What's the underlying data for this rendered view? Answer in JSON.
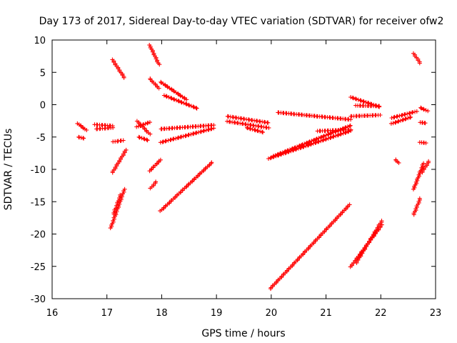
{
  "chart_data": {
    "type": "scatter",
    "title": "Day 173 of 2017, Sidereal Day-to-day VTEC variation (SDTVAR) for receiver ofw2",
    "xlabel": "GPS time / hours",
    "ylabel": "SDTVAR / TECUs",
    "xlim": [
      16,
      23
    ],
    "ylim": [
      -30,
      10
    ],
    "xticks": [
      "16",
      "17",
      "18",
      "19",
      "20",
      "21",
      "22",
      "23"
    ],
    "yticks": [
      "10",
      "5",
      "0",
      "-5",
      "-10",
      "-15",
      "-20",
      "-25",
      "-30"
    ],
    "grid": false,
    "legend": "none",
    "marker": "plus",
    "color": "#ff0000",
    "segments": [
      {
        "x": [
          16.47,
          16.62
        ],
        "y": [
          -3.0,
          -4.0
        ]
      },
      {
        "x": [
          16.48,
          16.58
        ],
        "y": [
          -5.0,
          -5.2
        ]
      },
      {
        "x": [
          16.78,
          17.1
        ],
        "y": [
          -3.0,
          -3.2
        ]
      },
      {
        "x": [
          16.8,
          17.1
        ],
        "y": [
          -3.8,
          -3.6
        ]
      },
      {
        "x": [
          17.1,
          17.32
        ],
        "y": [
          7.0,
          4.2
        ]
      },
      {
        "x": [
          17.12,
          17.3
        ],
        "y": [
          -5.8,
          -5.6
        ]
      },
      {
        "x": [
          17.1,
          17.35
        ],
        "y": [
          -10.5,
          -7.0
        ]
      },
      {
        "x": [
          17.07,
          17.32
        ],
        "y": [
          -19.0,
          -13.0
        ]
      },
      {
        "x": [
          17.12,
          17.25
        ],
        "y": [
          -17.0,
          -14.0
        ]
      },
      {
        "x": [
          17.55,
          17.78
        ],
        "y": [
          -2.5,
          -4.5
        ]
      },
      {
        "x": [
          17.55,
          17.78
        ],
        "y": [
          -3.5,
          -2.8
        ]
      },
      {
        "x": [
          17.58,
          17.75
        ],
        "y": [
          -5.0,
          -5.5
        ]
      },
      {
        "x": [
          17.78,
          17.95
        ],
        "y": [
          9.3,
          6.3
        ]
      },
      {
        "x": [
          17.78,
          17.95
        ],
        "y": [
          4.0,
          2.5
        ]
      },
      {
        "x": [
          17.78,
          17.98
        ],
        "y": [
          -10.2,
          -8.5
        ]
      },
      {
        "x": [
          17.8,
          17.9
        ],
        "y": [
          -13.0,
          -12.0
        ]
      },
      {
        "x": [
          17.98,
          18.45
        ],
        "y": [
          3.5,
          0.8
        ]
      },
      {
        "x": [
          18.05,
          18.65
        ],
        "y": [
          1.5,
          -0.5
        ]
      },
      {
        "x": [
          17.98,
          18.95
        ],
        "y": [
          -3.8,
          -3.2
        ]
      },
      {
        "x": [
          17.98,
          18.95
        ],
        "y": [
          -5.8,
          -3.6
        ]
      },
      {
        "x": [
          17.98,
          18.92
        ],
        "y": [
          -16.5,
          -9.0
        ]
      },
      {
        "x": [
          19.2,
          19.95
        ],
        "y": [
          -1.8,
          -2.8
        ]
      },
      {
        "x": [
          19.2,
          19.95
        ],
        "y": [
          -2.5,
          -3.5
        ]
      },
      {
        "x": [
          19.55,
          19.85
        ],
        "y": [
          -3.6,
          -4.3
        ]
      },
      {
        "x": [
          19.95,
          21.45
        ],
        "y": [
          -8.3,
          -4.0
        ]
      },
      {
        "x": [
          20.05,
          21.45
        ],
        "y": [
          -8.0,
          -3.3
        ]
      },
      {
        "x": [
          20.12,
          21.45
        ],
        "y": [
          -1.2,
          -2.3
        ]
      },
      {
        "x": [
          20.85,
          21.45
        ],
        "y": [
          -4.0,
          -3.8
        ]
      },
      {
        "x": [
          19.98,
          21.43
        ],
        "y": [
          -28.5,
          -15.5
        ]
      },
      {
        "x": [
          21.45,
          21.98
        ],
        "y": [
          1.2,
          -0.3
        ]
      },
      {
        "x": [
          21.55,
          21.98
        ],
        "y": [
          -0.2,
          -0.3
        ]
      },
      {
        "x": [
          21.45,
          21.98
        ],
        "y": [
          -1.8,
          -1.6
        ]
      },
      {
        "x": [
          21.45,
          22.02
        ],
        "y": [
          -25.0,
          -18.5
        ]
      },
      {
        "x": [
          21.55,
          22.02
        ],
        "y": [
          -24.5,
          -18.0
        ]
      },
      {
        "x": [
          22.2,
          22.65
        ],
        "y": [
          -2.0,
          -1.0
        ]
      },
      {
        "x": [
          22.2,
          22.55
        ],
        "y": [
          -3.0,
          -2.0
        ]
      },
      {
        "x": [
          22.27,
          22.32
        ],
        "y": [
          -8.5,
          -9.0
        ]
      },
      {
        "x": [
          22.6,
          22.72
        ],
        "y": [
          8.0,
          6.5
        ]
      },
      {
        "x": [
          22.72,
          22.85
        ],
        "y": [
          -0.5,
          -1.0
        ]
      },
      {
        "x": [
          22.72,
          22.82
        ],
        "y": [
          -2.7,
          -2.8
        ]
      },
      {
        "x": [
          22.72,
          22.82
        ],
        "y": [
          -5.9,
          -6.0
        ]
      },
      {
        "x": [
          22.6,
          22.72
        ],
        "y": [
          -17.0,
          -14.5
        ]
      },
      {
        "x": [
          22.6,
          22.78
        ],
        "y": [
          -13.0,
          -9.0
        ]
      },
      {
        "x": [
          22.75,
          22.88
        ],
        "y": [
          -10.5,
          -8.8
        ]
      }
    ]
  }
}
